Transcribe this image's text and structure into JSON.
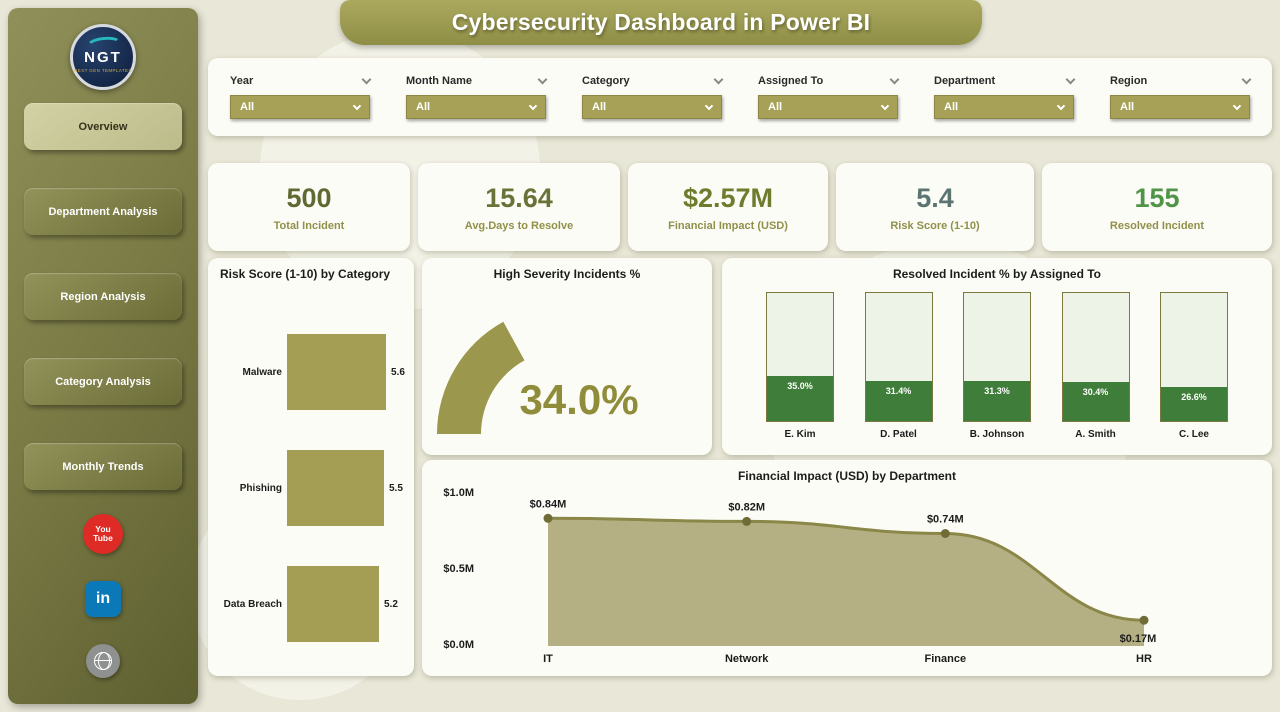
{
  "header": {
    "title": "Cybersecurity Dashboard in Power BI"
  },
  "sidebar": {
    "logo": {
      "text": "NGT",
      "subtext": "NEXT GEN TEMPLATES"
    },
    "nav_items": [
      {
        "label": "Overview",
        "active": true
      },
      {
        "label": "Department Analysis",
        "active": false
      },
      {
        "label": "Region Analysis",
        "active": false
      },
      {
        "label": "Category Analysis",
        "active": false
      },
      {
        "label": "Monthly Trends",
        "active": false
      }
    ],
    "social": [
      {
        "name": "youtube",
        "text": "You Tube"
      },
      {
        "name": "linkedin",
        "text": "in"
      },
      {
        "name": "website",
        "text": ""
      }
    ]
  },
  "filters": [
    {
      "label": "Year",
      "value": "All"
    },
    {
      "label": "Month Name",
      "value": "All"
    },
    {
      "label": "Category",
      "value": "All"
    },
    {
      "label": "Assigned To",
      "value": "All"
    },
    {
      "label": "Department",
      "value": "All"
    },
    {
      "label": "Region",
      "value": "All"
    }
  ],
  "kpis": [
    {
      "value": "500",
      "label": "Total Incident",
      "value_color": "#5f6a33"
    },
    {
      "value": "15.64",
      "label": "Avg.Days to Resolve",
      "value_color": "#6b7238"
    },
    {
      "value": "$2.57M",
      "label": "Financial Impact (USD)",
      "value_color": "#6f7c2e"
    },
    {
      "value": "5.4",
      "label": "Risk Score (1-10)",
      "value_color": "#5b7472"
    },
    {
      "value": "155",
      "label": "Resolved Incident",
      "value_color": "#4f9447"
    }
  ],
  "chart_data": [
    {
      "type": "bar",
      "orientation": "horizontal",
      "title": "Risk Score (1-10) by Category",
      "categories": [
        "Malware",
        "Phishing",
        "Data Breach"
      ],
      "values": [
        5.6,
        5.5,
        5.2
      ],
      "labels": [
        "5.6",
        "5.5",
        "5.2"
      ],
      "xlim": [
        0,
        6
      ],
      "bar_color": "#a39e53"
    },
    {
      "type": "gauge",
      "title": "High Severity Incidents %",
      "value": 34.0,
      "display": "34.0%",
      "min": 0,
      "max": 100,
      "arc_color": "#9b974d"
    },
    {
      "type": "bar",
      "orientation": "vertical",
      "title": "Resolved Incident % by Assigned To",
      "categories": [
        "E. Kim",
        "D. Patel",
        "B. Johnson",
        "A. Smith",
        "C. Lee"
      ],
      "values": [
        35.0,
        31.4,
        31.3,
        30.4,
        26.6
      ],
      "labels": [
        "35.0%",
        "31.4%",
        "31.3%",
        "30.4%",
        "26.6%"
      ],
      "ylim": [
        0,
        100
      ],
      "fill_color": "#3f7e3a",
      "frame_color": "#7c7940"
    },
    {
      "type": "area",
      "title": "Financial Impact (USD) by Department",
      "categories": [
        "IT",
        "Network",
        "Finance",
        "HR"
      ],
      "values": [
        0.84,
        0.82,
        0.74,
        0.17
      ],
      "labels": [
        "$0.84M",
        "$0.82M",
        "$0.74M",
        "$0.17M"
      ],
      "y_ticks": [
        {
          "label": "$1.0M",
          "value": 1.0
        },
        {
          "label": "$0.5M",
          "value": 0.5
        },
        {
          "label": "$0.0M",
          "value": 0.0
        }
      ],
      "area_color": "#b5b083",
      "line_color": "#8a8748"
    }
  ]
}
